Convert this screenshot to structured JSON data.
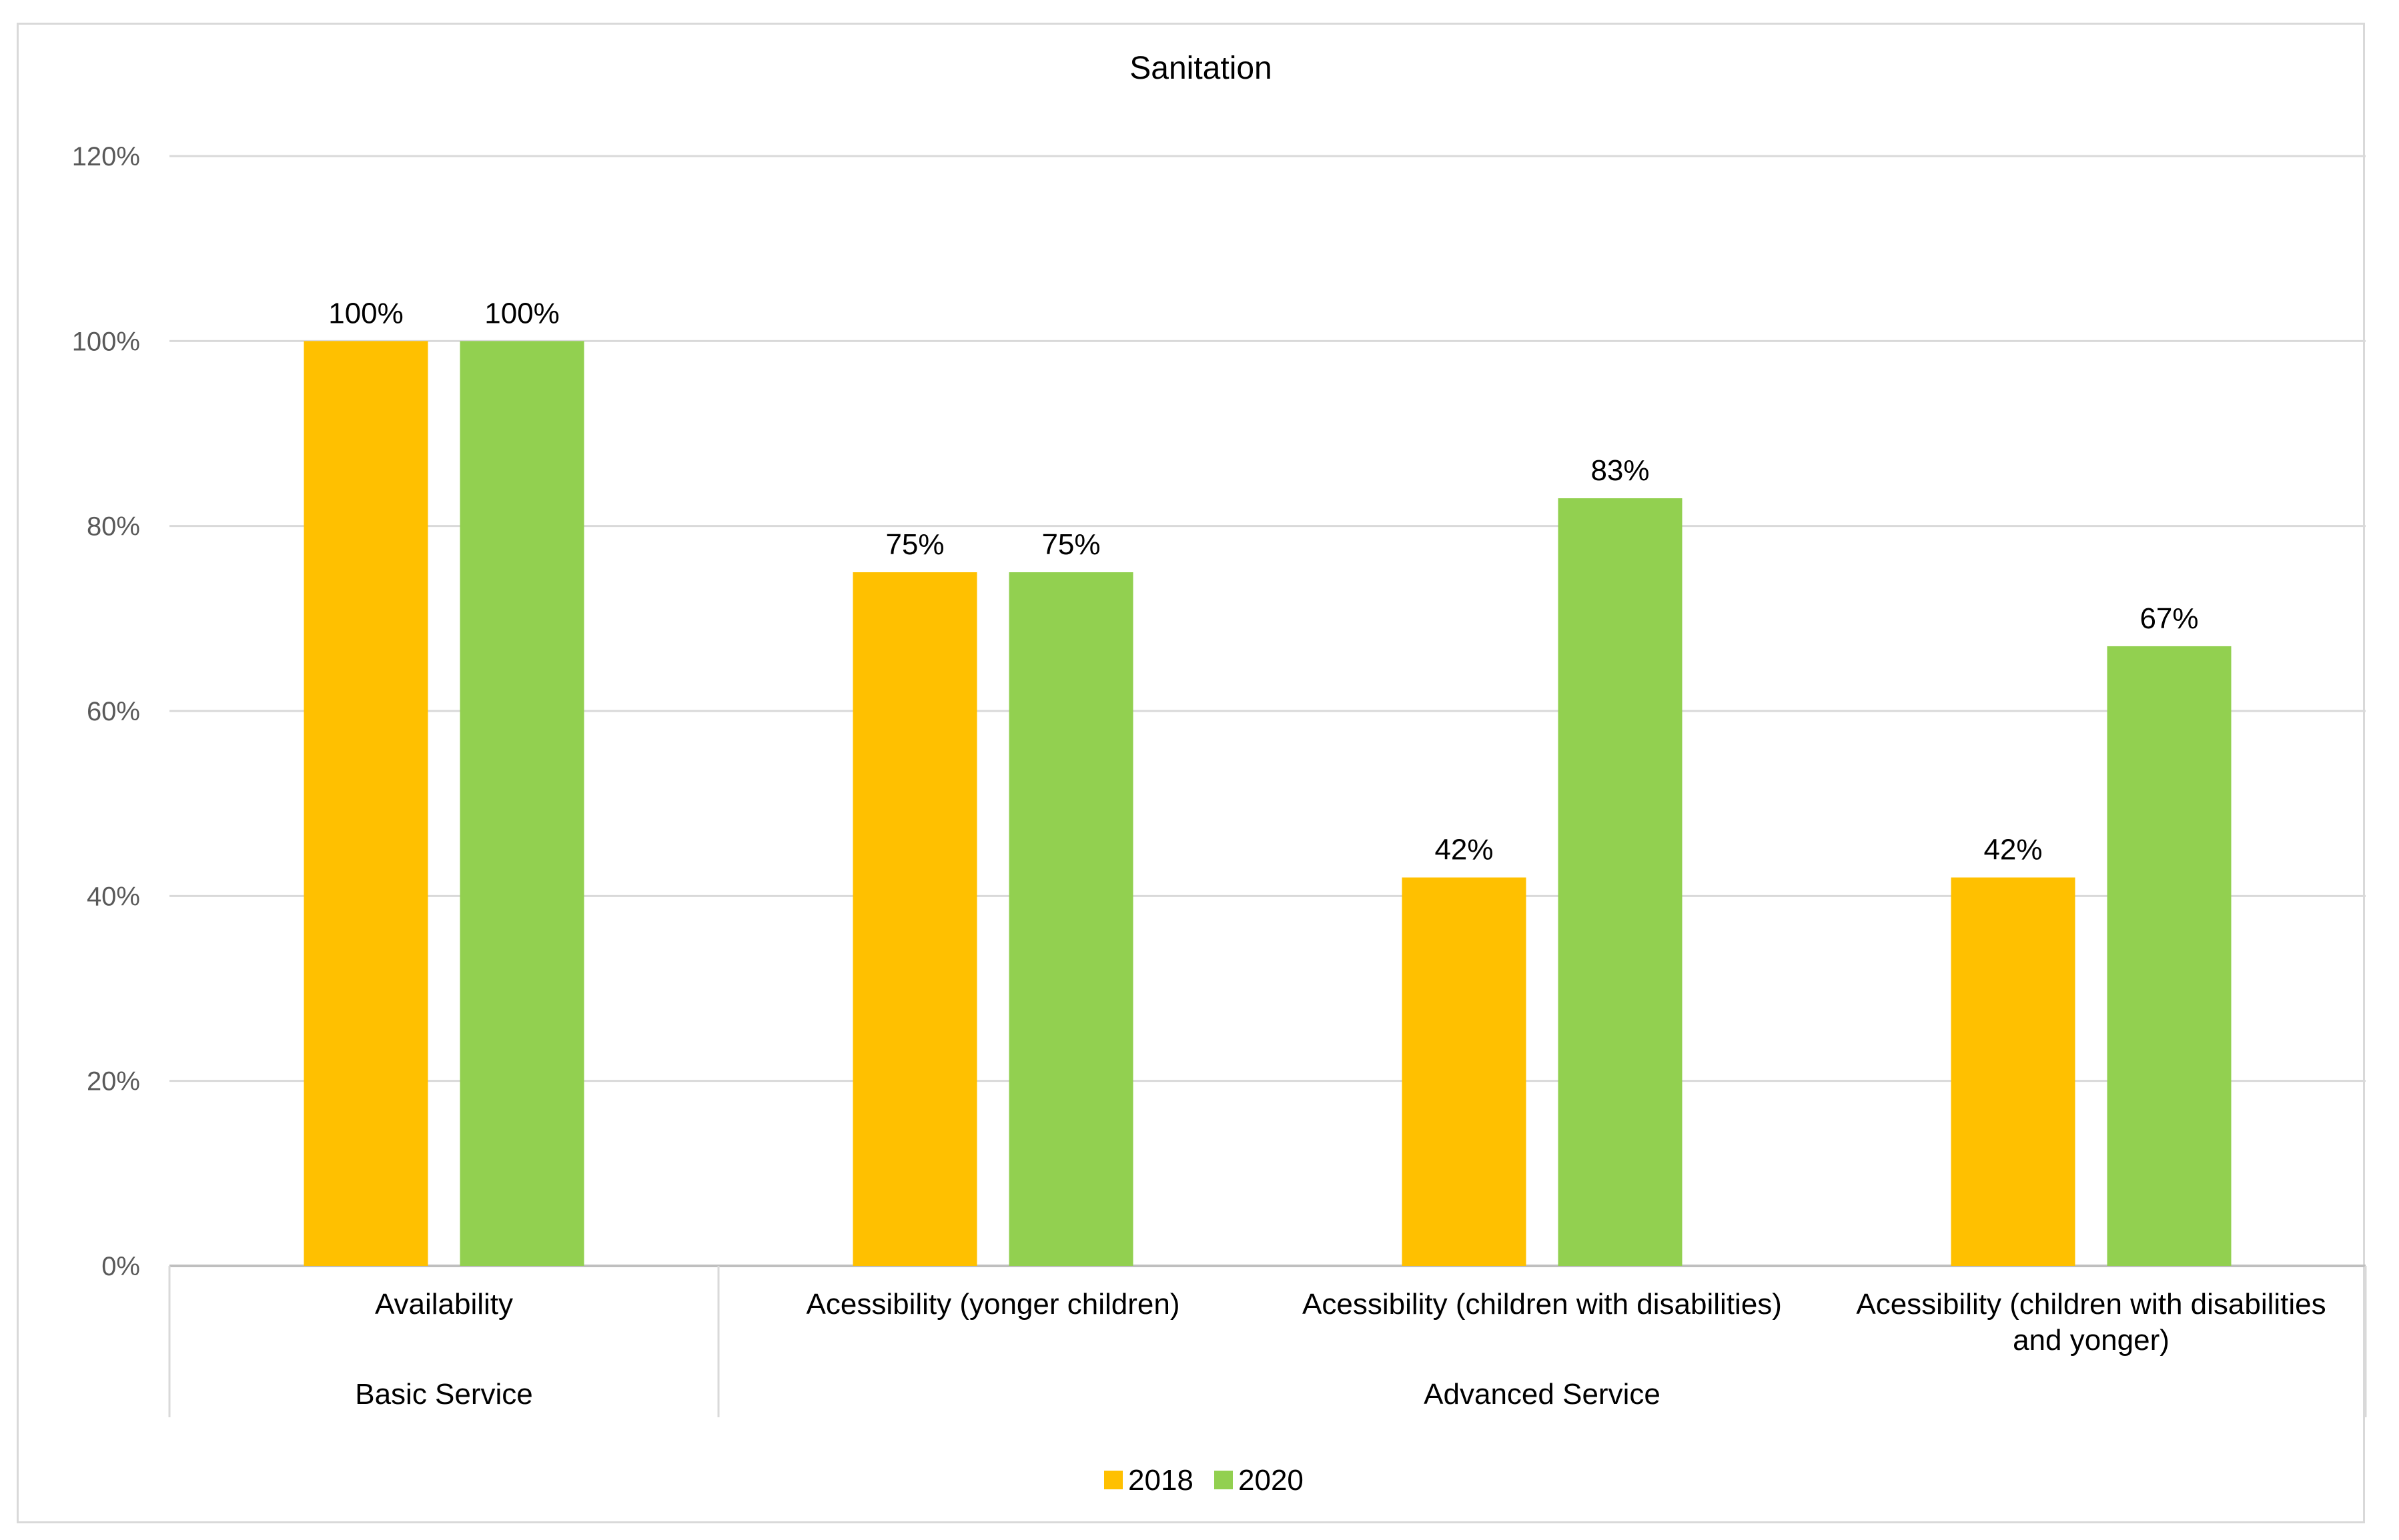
{
  "chart_data": {
    "type": "bar",
    "title": "Sanitation",
    "categories": [
      {
        "label": [
          "Availability"
        ],
        "group": "Basic Service"
      },
      {
        "label": [
          "Acessibility (yonger children)"
        ],
        "group": "Advanced Service"
      },
      {
        "label": [
          "Acessibility (children with disabilities)"
        ],
        "group": "Advanced Service"
      },
      {
        "label": [
          "Acessibility (children with disabilities",
          "and yonger)"
        ],
        "group": "Advanced Service"
      }
    ],
    "groups": [
      "Basic Service",
      "Advanced Service"
    ],
    "series": [
      {
        "name": "2018",
        "color": "#ffc000",
        "values": [
          100,
          75,
          42,
          42
        ],
        "labels": [
          "100%",
          "75%",
          "42%",
          "42%"
        ]
      },
      {
        "name": "2020",
        "color": "#92d050",
        "values": [
          100,
          75,
          83,
          67
        ],
        "labels": [
          "100%",
          "75%",
          "83%",
          "67%"
        ]
      }
    ],
    "yticks": [
      "0%",
      "20%",
      "40%",
      "60%",
      "80%",
      "100%",
      "120%"
    ],
    "ylim": [
      0,
      120
    ],
    "ylabel": "",
    "xlabel": "",
    "grid": true,
    "legend": "bottom-center"
  }
}
